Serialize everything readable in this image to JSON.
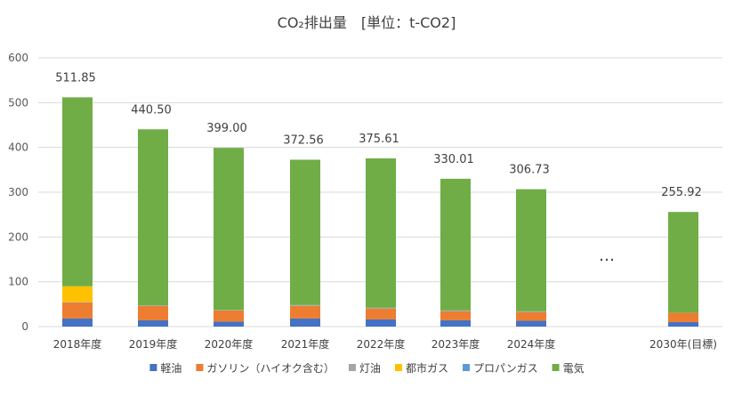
{
  "chart_data": {
    "type": "bar",
    "stacked": true,
    "title": "CO₂排出量　[単位：t-CO2]",
    "categories": [
      "2018年度",
      "2019年度",
      "2020年度",
      "2021年度",
      "2022年度",
      "2023年度",
      "2024年度",
      "2030年(目標)"
    ],
    "gap_marker": "…",
    "ylim": [
      0,
      600
    ],
    "yticks": [
      0,
      100,
      200,
      300,
      400,
      500,
      600
    ],
    "grid": true,
    "legend_position": "bottom",
    "totals": [
      "511.85",
      "440.50",
      "399.00",
      "372.56",
      "375.61",
      "330.01",
      "306.73",
      "255.92"
    ],
    "series": [
      {
        "name": "軽油",
        "color": "#4472C4",
        "values": [
          18,
          14,
          11,
          18,
          16,
          14,
          13,
          10
        ]
      },
      {
        "name": "ガソリン（ハイオク含む）",
        "color": "#ED7D31",
        "values": [
          36,
          32,
          25,
          28,
          24,
          20,
          19,
          21
        ]
      },
      {
        "name": "灯油",
        "color": "#A5A5A5",
        "values": [
          1,
          1,
          1,
          2,
          2,
          2,
          2,
          0
        ]
      },
      {
        "name": "都市ガス",
        "color": "#FFC000",
        "values": [
          35,
          0,
          0,
          0,
          0,
          0,
          0,
          0
        ]
      },
      {
        "name": "プロパンガス",
        "color": "#5B9BD5",
        "values": [
          0,
          0,
          0,
          0,
          0,
          0,
          0,
          0
        ]
      },
      {
        "name": "電気",
        "color": "#70AD47",
        "values": [
          421.85,
          393.5,
          362.0,
          324.56,
          333.61,
          294.01,
          272.73,
          224.92
        ]
      }
    ]
  }
}
